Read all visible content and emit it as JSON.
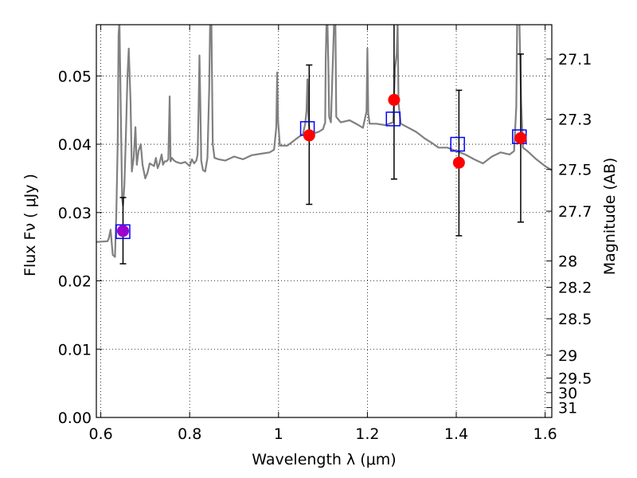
{
  "chart_data": {
    "type": "scatter",
    "title": "",
    "xlabel": "Wavelength  λ (μm)",
    "ylabel": "Flux  Fν  ( μJy )",
    "ylabel_right": "Magnitude (AB)",
    "xlim": [
      0.59,
      1.615
    ],
    "ylim": [
      0.0,
      0.0575
    ],
    "grid": true,
    "x_ticks": [
      {
        "value": 0.6,
        "label": "0.6"
      },
      {
        "value": 0.8,
        "label": "0.8"
      },
      {
        "value": 1.0,
        "label": "1"
      },
      {
        "value": 1.2,
        "label": "1.2"
      },
      {
        "value": 1.4,
        "label": "1.4"
      },
      {
        "value": 1.6,
        "label": "1.6"
      }
    ],
    "y_ticks": [
      {
        "value": 0.0,
        "label": "0.00"
      },
      {
        "value": 0.01,
        "label": "0.01"
      },
      {
        "value": 0.02,
        "label": "0.02"
      },
      {
        "value": 0.03,
        "label": "0.03"
      },
      {
        "value": 0.04,
        "label": "0.04"
      },
      {
        "value": 0.05,
        "label": "0.05"
      }
    ],
    "right_ticks": [
      {
        "mag": 27.1,
        "label": "27.1"
      },
      {
        "mag": 27.3,
        "label": "27.3"
      },
      {
        "mag": 27.5,
        "label": "27.5"
      },
      {
        "mag": 27.7,
        "label": "27.7"
      },
      {
        "mag": 28.0,
        "label": "28"
      },
      {
        "mag": 28.2,
        "label": "28.2"
      },
      {
        "mag": 28.5,
        "label": "28.5"
      },
      {
        "mag": 29.0,
        "label": "29"
      },
      {
        "mag": 29.5,
        "label": "29.5"
      },
      {
        "mag": 30.0,
        "label": "30"
      },
      {
        "mag": 31.0,
        "label": "31"
      }
    ],
    "series": [
      {
        "kind": "line",
        "color": "#808080",
        "points": [
          [
            0.59,
            0.0257
          ],
          [
            0.615,
            0.0258
          ],
          [
            0.618,
            0.0262
          ],
          [
            0.622,
            0.0275
          ],
          [
            0.627,
            0.0238
          ],
          [
            0.632,
            0.0235
          ],
          [
            0.635,
            0.03
          ],
          [
            0.638,
            0.04
          ],
          [
            0.64,
            0.056
          ],
          [
            0.642,
            0.058
          ],
          [
            0.645,
            0.045
          ],
          [
            0.648,
            0.032
          ],
          [
            0.65,
            0.031
          ],
          [
            0.653,
            0.034
          ],
          [
            0.656,
            0.04
          ],
          [
            0.66,
            0.05
          ],
          [
            0.663,
            0.054
          ],
          [
            0.667,
            0.046
          ],
          [
            0.67,
            0.036
          ],
          [
            0.674,
            0.038
          ],
          [
            0.678,
            0.0425
          ],
          [
            0.681,
            0.037
          ],
          [
            0.685,
            0.039
          ],
          [
            0.69,
            0.04
          ],
          [
            0.694,
            0.037
          ],
          [
            0.697,
            0.036
          ],
          [
            0.7,
            0.035
          ],
          [
            0.705,
            0.0358
          ],
          [
            0.71,
            0.0372
          ],
          [
            0.715,
            0.037
          ],
          [
            0.72,
            0.0368
          ],
          [
            0.724,
            0.038
          ],
          [
            0.728,
            0.0365
          ],
          [
            0.732,
            0.0372
          ],
          [
            0.737,
            0.0385
          ],
          [
            0.74,
            0.037
          ],
          [
            0.744,
            0.0375
          ],
          [
            0.748,
            0.0375
          ],
          [
            0.752,
            0.0378
          ],
          [
            0.755,
            0.047
          ],
          [
            0.757,
            0.0375
          ],
          [
            0.76,
            0.038
          ],
          [
            0.765,
            0.0376
          ],
          [
            0.77,
            0.0374
          ],
          [
            0.78,
            0.0372
          ],
          [
            0.79,
            0.0374
          ],
          [
            0.8,
            0.0368
          ],
          [
            0.805,
            0.0378
          ],
          [
            0.81,
            0.0372
          ],
          [
            0.815,
            0.0376
          ],
          [
            0.818,
            0.0385
          ],
          [
            0.82,
            0.0452
          ],
          [
            0.822,
            0.053
          ],
          [
            0.824,
            0.046
          ],
          [
            0.826,
            0.0376
          ],
          [
            0.83,
            0.0362
          ],
          [
            0.835,
            0.036
          ],
          [
            0.84,
            0.038
          ],
          [
            0.844,
            0.048
          ],
          [
            0.846,
            0.058
          ],
          [
            0.849,
            0.058
          ],
          [
            0.852,
            0.04
          ],
          [
            0.856,
            0.038
          ],
          [
            0.865,
            0.0378
          ],
          [
            0.88,
            0.0376
          ],
          [
            0.9,
            0.0382
          ],
          [
            0.92,
            0.0378
          ],
          [
            0.94,
            0.0384
          ],
          [
            0.96,
            0.0386
          ],
          [
            0.98,
            0.0388
          ],
          [
            0.99,
            0.0392
          ],
          [
            0.995,
            0.0425
          ],
          [
            0.997,
            0.0505
          ],
          [
            0.999,
            0.0435
          ],
          [
            1.003,
            0.0398
          ],
          [
            1.02,
            0.0398
          ],
          [
            1.04,
            0.0408
          ],
          [
            1.055,
            0.0415
          ],
          [
            1.06,
            0.043
          ],
          [
            1.063,
            0.045
          ],
          [
            1.065,
            0.0495
          ],
          [
            1.067,
            0.0445
          ],
          [
            1.07,
            0.0413
          ],
          [
            1.08,
            0.0416
          ],
          [
            1.09,
            0.0418
          ],
          [
            1.1,
            0.0422
          ],
          [
            1.105,
            0.0432
          ],
          [
            1.106,
            0.052
          ],
          [
            1.108,
            0.058
          ],
          [
            1.11,
            0.058
          ],
          [
            1.112,
            0.052
          ],
          [
            1.114,
            0.044
          ],
          [
            1.118,
            0.0432
          ],
          [
            1.125,
            0.058
          ],
          [
            1.128,
            0.058
          ],
          [
            1.13,
            0.044
          ],
          [
            1.14,
            0.0432
          ],
          [
            1.16,
            0.0435
          ],
          [
            1.18,
            0.0428
          ],
          [
            1.19,
            0.0424
          ],
          [
            1.198,
            0.0448
          ],
          [
            1.2,
            0.054
          ],
          [
            1.202,
            0.0445
          ],
          [
            1.205,
            0.043
          ],
          [
            1.22,
            0.043
          ],
          [
            1.24,
            0.0428
          ],
          [
            1.258,
            0.0432
          ],
          [
            1.262,
            0.051
          ],
          [
            1.266,
            0.0532
          ],
          [
            1.268,
            0.058
          ],
          [
            1.27,
            0.046
          ],
          [
            1.275,
            0.043
          ],
          [
            1.29,
            0.0425
          ],
          [
            1.31,
            0.0418
          ],
          [
            1.33,
            0.0408
          ],
          [
            1.345,
            0.0402
          ],
          [
            1.36,
            0.0395
          ],
          [
            1.38,
            0.0395
          ],
          [
            1.4,
            0.039
          ],
          [
            1.42,
            0.0385
          ],
          [
            1.44,
            0.0378
          ],
          [
            1.46,
            0.0372
          ],
          [
            1.48,
            0.0382
          ],
          [
            1.5,
            0.0388
          ],
          [
            1.52,
            0.0385
          ],
          [
            1.53,
            0.039
          ],
          [
            1.535,
            0.0455
          ],
          [
            1.537,
            0.058
          ],
          [
            1.542,
            0.058
          ],
          [
            1.546,
            0.0462
          ],
          [
            1.55,
            0.0395
          ],
          [
            1.56,
            0.039
          ],
          [
            1.58,
            0.0378
          ],
          [
            1.6,
            0.0368
          ],
          [
            1.615,
            0.0362
          ]
        ]
      },
      {
        "kind": "errorbars",
        "color": "#000000",
        "points": [
          {
            "x": 0.65,
            "y": 0.0273,
            "low": 0.0225,
            "high": 0.0322
          },
          {
            "x": 1.069,
            "y": 0.0413,
            "low": 0.0312,
            "high": 0.0516
          },
          {
            "x": 1.26,
            "y": 0.0465,
            "low": 0.0349,
            "high": 0.058
          },
          {
            "x": 1.406,
            "y": 0.0373,
            "low": 0.0266,
            "high": 0.0479
          },
          {
            "x": 1.545,
            "y": 0.0409,
            "low": 0.0286,
            "high": 0.0532
          }
        ]
      },
      {
        "kind": "squares",
        "color": "#0000ff",
        "points": [
          [
            0.65,
            0.0272
          ],
          [
            1.065,
            0.0423
          ],
          [
            1.258,
            0.0437
          ],
          [
            1.403,
            0.04
          ],
          [
            1.542,
            0.0411
          ]
        ]
      },
      {
        "kind": "circles",
        "color": "#ff0000",
        "points": [
          [
            0.65,
            0.0273
          ],
          [
            1.069,
            0.0413
          ],
          [
            1.26,
            0.0465
          ],
          [
            1.406,
            0.0373
          ],
          [
            1.545,
            0.0409
          ]
        ]
      }
    ]
  }
}
